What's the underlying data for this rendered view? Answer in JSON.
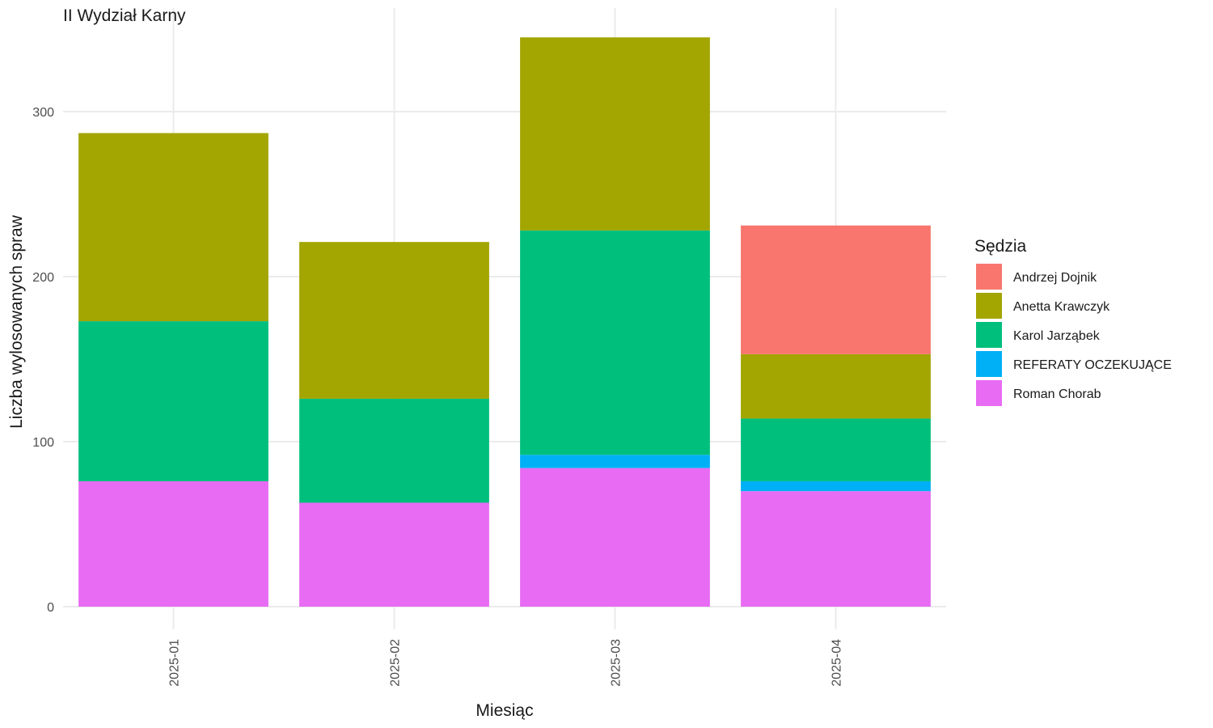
{
  "chart_data": {
    "type": "bar",
    "stacked": true,
    "title": "II Wydział Karny",
    "xlabel": "Miesiąc",
    "ylabel": "Liczba wylosowanych spraw",
    "categories": [
      "2025-01",
      "2025-02",
      "2025-03",
      "2025-04"
    ],
    "ylim": [
      0,
      345
    ],
    "yticks": [
      0,
      100,
      200,
      300
    ],
    "grid": true,
    "legend": {
      "title": "Sędzia",
      "position": "right"
    },
    "series": [
      {
        "name": "Andrzej Dojnik",
        "color": "#F8766D",
        "values": [
          0,
          0,
          0,
          78
        ]
      },
      {
        "name": "Anetta Krawczyk",
        "color": "#A3A500",
        "values": [
          114,
          95,
          117,
          39
        ]
      },
      {
        "name": "Karol Jarząbek",
        "color": "#00BF7D",
        "values": [
          97,
          63,
          136,
          38
        ]
      },
      {
        "name": "REFERATY OCZEKUJĄCE",
        "color": "#00B0F6",
        "values": [
          0,
          0,
          8,
          6
        ]
      },
      {
        "name": "Roman Chorab",
        "color": "#E76BF3",
        "values": [
          76,
          63,
          84,
          70
        ]
      }
    ],
    "stack_order_bottom_to_top": [
      "Roman Chorab",
      "REFERATY OCZEKUJĄCE",
      "Karol Jarząbek",
      "Anetta Krawczyk",
      "Andrzej Dojnik"
    ]
  }
}
